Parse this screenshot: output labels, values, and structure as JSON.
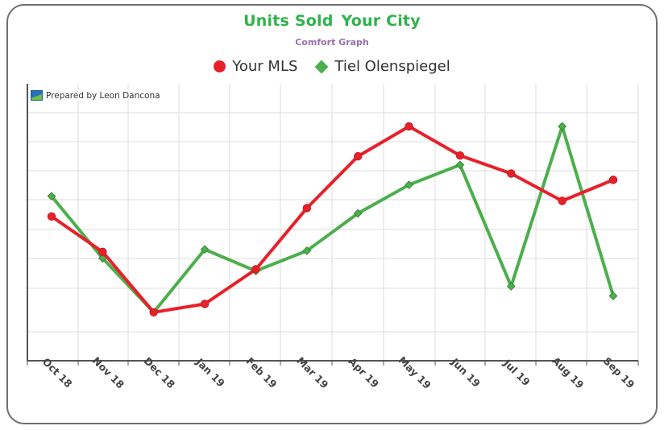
{
  "header": {
    "title_part1": "Units Sold",
    "title_part2": "Your City",
    "subtitle": "Comfort Graph",
    "credit": "Prepared by Leon Dancona"
  },
  "colors": {
    "title": "#2db34a",
    "subtitle": "#9a6fb0",
    "series_red": "#e8202a",
    "series_green": "#4cae4c"
  },
  "chart_data": {
    "type": "line",
    "title": "Units Sold  Your City",
    "subtitle": "Comfort Graph",
    "xlabel": "",
    "ylabel": "",
    "categories": [
      "Oct 18",
      "Nov 18",
      "Dec 18",
      "Jan 19",
      "Feb 19",
      "Mar 19",
      "Apr 19",
      "May 19",
      "Jun 19",
      "Jul 19",
      "Aug 19",
      "Sep 19"
    ],
    "ylim": [
      0,
      100
    ],
    "y_tick_labels_shown": false,
    "grid": true,
    "legend_position": "top-center",
    "series": [
      {
        "name": "Your MLS",
        "marker": "circle",
        "color": "#e8202a",
        "values": [
          52.1,
          39.3,
          17.5,
          20.5,
          33.0,
          55.1,
          73.8,
          84.6,
          74.1,
          67.6,
          57.7,
          65.3
        ]
      },
      {
        "name": "Tiel Olenspiegel",
        "marker": "diamond",
        "color": "#4cae4c",
        "values": [
          59.4,
          37.0,
          17.5,
          40.2,
          32.4,
          39.7,
          53.2,
          63.5,
          70.7,
          26.9,
          84.6,
          23.4
        ]
      }
    ]
  }
}
